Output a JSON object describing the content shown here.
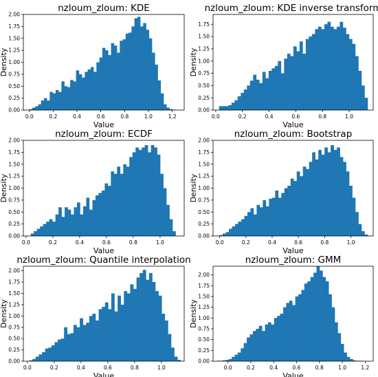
{
  "figure": {
    "background": "#ffffff",
    "bar_color": "#1f77b4"
  },
  "chart_data": [
    {
      "type": "bar",
      "title": "nzloum_zloum: KDE",
      "xlabel": "Value",
      "ylabel": "Density",
      "xlim": [
        -0.05,
        1.3
      ],
      "ylim": [
        0,
        2.0
      ],
      "xticks": [
        "0.0",
        "0.2",
        "0.4",
        "0.6",
        "0.8",
        "1.0",
        "1.2"
      ],
      "yticks": [
        "0.00",
        "0.25",
        "0.50",
        "0.75",
        "1.00",
        "1.25",
        "1.50",
        "1.75",
        "2.00"
      ],
      "bin_start": 0.0,
      "bin_width": 0.0245,
      "values": [
        0.02,
        0.05,
        0.08,
        0.12,
        0.2,
        0.25,
        0.2,
        0.38,
        0.35,
        0.42,
        0.38,
        0.6,
        0.5,
        0.48,
        0.63,
        0.6,
        0.83,
        0.75,
        0.68,
        0.8,
        0.85,
        0.9,
        0.8,
        1.0,
        1.1,
        1.3,
        1.25,
        1.15,
        1.4,
        1.35,
        1.2,
        1.45,
        1.48,
        1.6,
        1.62,
        1.75,
        1.92,
        1.95,
        1.75,
        1.82,
        1.68,
        1.5,
        1.2,
        0.95,
        0.62,
        0.35,
        0.12,
        0.05,
        0.02,
        0.01
      ]
    },
    {
      "type": "bar",
      "title": "nzloum_zloum: KDE inverse transform",
      "xlabel": "Value",
      "ylabel": "Density",
      "xlim": [
        -0.02,
        1.18
      ],
      "ylim": [
        0,
        1.95
      ],
      "xticks": [
        "0.0",
        "0.2",
        "0.4",
        "0.6",
        "0.8",
        "1.0"
      ],
      "yticks": [
        "0.00",
        "0.25",
        "0.50",
        "0.75",
        "1.00",
        "1.25",
        "1.50",
        "1.75"
      ],
      "bin_start": 0.025,
      "bin_width": 0.0232,
      "values": [
        0.08,
        0.08,
        0.08,
        0.1,
        0.15,
        0.2,
        0.28,
        0.35,
        0.42,
        0.5,
        0.6,
        0.72,
        0.62,
        0.55,
        0.78,
        0.65,
        0.8,
        0.85,
        0.9,
        1.0,
        0.75,
        1.05,
        1.15,
        1.1,
        1.3,
        1.2,
        1.4,
        1.15,
        1.45,
        1.5,
        1.55,
        1.65,
        1.7,
        1.65,
        1.75,
        1.8,
        1.7,
        1.65,
        1.7,
        1.8,
        1.68,
        1.55,
        1.45,
        1.35,
        1.1,
        0.8,
        0.5,
        0.25
      ]
    },
    {
      "type": "bar",
      "title": "nzloum_zloum: ECDF",
      "xlabel": "Value",
      "ylabel": "Density",
      "xlim": [
        -0.02,
        1.18
      ],
      "ylim": [
        0,
        2.0
      ],
      "xticks": [
        "0.0",
        "0.2",
        "0.4",
        "0.6",
        "0.8",
        "1.0"
      ],
      "yticks": [
        "0.00",
        "0.25",
        "0.50",
        "0.75",
        "1.00",
        "1.25",
        "1.50",
        "1.75",
        "2.00"
      ],
      "bin_start": 0.035,
      "bin_width": 0.023,
      "values": [
        0.05,
        0.1,
        0.15,
        0.2,
        0.25,
        0.3,
        0.35,
        0.3,
        0.45,
        0.6,
        0.4,
        0.6,
        0.55,
        0.45,
        0.6,
        0.7,
        0.45,
        0.62,
        0.8,
        0.55,
        0.75,
        0.85,
        0.9,
        0.95,
        1.1,
        1.05,
        1.35,
        1.3,
        1.45,
        1.3,
        1.5,
        1.45,
        1.65,
        1.75,
        1.85,
        1.8,
        1.85,
        1.9,
        1.75,
        1.9,
        1.85,
        1.7,
        1.3,
        1.0,
        0.65,
        0.35,
        0.1
      ]
    },
    {
      "type": "bar",
      "title": "nzloum_zloum: Bootstrap",
      "xlabel": "Value",
      "ylabel": "Density",
      "xlim": [
        -0.05,
        1.17
      ],
      "ylim": [
        0,
        2.0
      ],
      "xticks": [
        "0.0",
        "0.2",
        "0.4",
        "0.6",
        "0.8",
        "1.0"
      ],
      "yticks": [
        "0.00",
        "0.25",
        "0.50",
        "0.75",
        "1.00",
        "1.25",
        "1.50",
        "1.75",
        "2.00"
      ],
      "bin_start": 0.0,
      "bin_width": 0.0235,
      "values": [
        0.02,
        0.05,
        0.08,
        0.15,
        0.2,
        0.25,
        0.3,
        0.35,
        0.42,
        0.5,
        0.58,
        0.45,
        0.65,
        0.6,
        0.75,
        0.62,
        0.78,
        0.8,
        0.95,
        0.8,
        0.9,
        1.0,
        1.05,
        1.2,
        1.15,
        1.35,
        1.25,
        1.45,
        1.4,
        1.55,
        1.75,
        1.6,
        1.8,
        1.7,
        1.85,
        1.75,
        1.9,
        1.8,
        1.85,
        1.65,
        1.55,
        1.35,
        1.05,
        0.8,
        0.5,
        0.25,
        0.1,
        0.03
      ]
    },
    {
      "type": "bar",
      "title": "nzloum_zloum: Quantile interpolation",
      "xlabel": "Value",
      "ylabel": "Density",
      "xlim": [
        -0.03,
        1.17
      ],
      "ylim": [
        0,
        2.1
      ],
      "xticks": [
        "0.0",
        "0.2",
        "0.4",
        "0.6",
        "0.8",
        "1.0"
      ],
      "yticks": [
        "0.00",
        "0.25",
        "0.50",
        "0.75",
        "1.00",
        "1.25",
        "1.50",
        "1.75",
        "2.00"
      ],
      "bin_start": 0.015,
      "bin_width": 0.0235,
      "values": [
        0.02,
        0.05,
        0.1,
        0.15,
        0.2,
        0.28,
        0.3,
        0.35,
        0.42,
        0.48,
        0.5,
        0.75,
        0.6,
        0.62,
        0.8,
        0.75,
        0.95,
        0.8,
        0.85,
        1.0,
        1.05,
        0.9,
        1.15,
        1.2,
        1.3,
        1.15,
        1.5,
        1.1,
        1.45,
        1.25,
        1.55,
        1.5,
        1.7,
        1.6,
        1.85,
        1.95,
        2.02,
        1.8,
        1.95,
        1.75,
        1.55,
        1.45,
        1.05,
        0.9,
        0.6,
        0.3,
        0.1,
        0.03
      ]
    },
    {
      "type": "bar",
      "title": "nzloum_zloum: GMM",
      "xlabel": "Value",
      "ylabel": "Density",
      "xlim": [
        -0.13,
        1.27
      ],
      "ylim": [
        0,
        2.2
      ],
      "xticks": [
        "0.0",
        "0.2",
        "0.4",
        "0.6",
        "0.8",
        "1.0",
        "1.2"
      ],
      "yticks": [
        "0.00",
        "0.25",
        "0.50",
        "0.75",
        "1.00",
        "1.25",
        "1.50",
        "1.75",
        "2.00"
      ],
      "bin_start": -0.1,
      "bin_width": 0.0265,
      "values": [
        0.01,
        0.01,
        0.02,
        0.03,
        0.05,
        0.1,
        0.15,
        0.2,
        0.3,
        0.42,
        0.55,
        0.62,
        0.7,
        0.75,
        0.82,
        0.7,
        0.85,
        0.9,
        0.85,
        1.0,
        1.05,
        1.1,
        1.25,
        1.35,
        1.4,
        1.3,
        1.5,
        1.55,
        1.65,
        1.8,
        1.85,
        1.95,
        2.05,
        2.2,
        2.1,
        1.95,
        1.85,
        1.55,
        1.25,
        0.9,
        0.65,
        0.4,
        0.2,
        0.1,
        0.05,
        0.02,
        0.01,
        0.01
      ]
    }
  ]
}
